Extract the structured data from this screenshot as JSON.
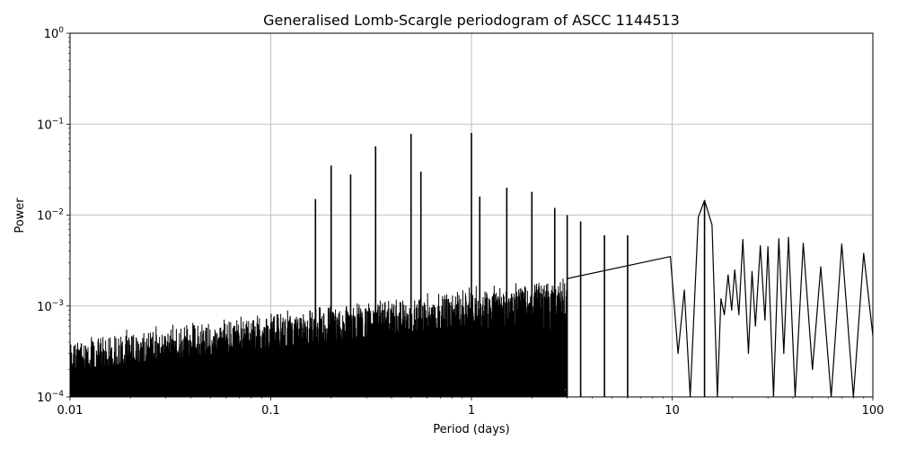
{
  "chart_data": {
    "type": "line",
    "title": "Generalised Lomb-Scargle periodogram of ASCC 1144513",
    "xlabel": "Period (days)",
    "ylabel": "Power",
    "xscale": "log",
    "yscale": "log",
    "xlim": [
      0.01,
      100
    ],
    "ylim": [
      0.0001,
      1
    ],
    "grid": true,
    "line_color": "#000000",
    "x_ticks": [
      {
        "value": 0.01,
        "label": "0.01"
      },
      {
        "value": 0.1,
        "label": "0.1"
      },
      {
        "value": 1,
        "label": "1"
      },
      {
        "value": 10,
        "label": "10"
      },
      {
        "value": 100,
        "label": "100"
      }
    ],
    "y_ticks": [
      {
        "value": 0.0001,
        "mant": "10",
        "exp": "−4"
      },
      {
        "value": 0.001,
        "mant": "10",
        "exp": "−3"
      },
      {
        "value": 0.01,
        "mant": "10",
        "exp": "−2"
      },
      {
        "value": 0.1,
        "mant": "10",
        "exp": "−1"
      },
      {
        "value": 1,
        "mant": "10",
        "exp": "0"
      }
    ],
    "peaks": [
      {
        "x": 0.167,
        "y": 0.015
      },
      {
        "x": 0.2,
        "y": 0.035
      },
      {
        "x": 0.25,
        "y": 0.028
      },
      {
        "x": 0.333,
        "y": 0.057
      },
      {
        "x": 0.5,
        "y": 0.078
      },
      {
        "x": 0.56,
        "y": 0.03
      },
      {
        "x": 1.0,
        "y": 0.08
      },
      {
        "x": 1.1,
        "y": 0.016
      },
      {
        "x": 1.5,
        "y": 0.02
      },
      {
        "x": 2.0,
        "y": 0.018
      },
      {
        "x": 2.6,
        "y": 0.012
      },
      {
        "x": 3.0,
        "y": 0.01
      },
      {
        "x": 3.5,
        "y": 0.0085
      },
      {
        "x": 4.6,
        "y": 0.006
      },
      {
        "x": 6.0,
        "y": 0.006
      },
      {
        "x": 14.5,
        "y": 0.0145
      }
    ],
    "dense_region": {
      "x_start": 0.01,
      "x_end": 3.0
    },
    "lobes": [
      {
        "x": 9.8,
        "y": 0.0035
      },
      {
        "x": 11.5,
        "y": 0.0015
      },
      {
        "x": 13.5,
        "y": 0.0095
      },
      {
        "x": 14.5,
        "y": 0.0145
      },
      {
        "x": 15.8,
        "y": 0.0078
      },
      {
        "x": 17.5,
        "y": 0.0012
      },
      {
        "x": 19.0,
        "y": 0.0022
      },
      {
        "x": 20.5,
        "y": 0.0025
      },
      {
        "x": 22.5,
        "y": 0.0054
      },
      {
        "x": 25.0,
        "y": 0.0024
      },
      {
        "x": 27.5,
        "y": 0.0046
      },
      {
        "x": 30.0,
        "y": 0.0045
      },
      {
        "x": 34.0,
        "y": 0.0055
      },
      {
        "x": 38.0,
        "y": 0.0057
      },
      {
        "x": 45.0,
        "y": 0.0049
      },
      {
        "x": 55.0,
        "y": 0.0027
      },
      {
        "x": 70.0,
        "y": 0.0048
      },
      {
        "x": 90.0,
        "y": 0.0038
      }
    ],
    "nulls": [
      {
        "x": 10.7,
        "y": 0.0003
      },
      {
        "x": 12.3,
        "y": 0.0001
      },
      {
        "x": 16.8,
        "y": 0.0001
      },
      {
        "x": 18.2,
        "y": 0.0008
      },
      {
        "x": 19.8,
        "y": 0.0009
      },
      {
        "x": 21.5,
        "y": 0.0008
      },
      {
        "x": 24.0,
        "y": 0.0003
      },
      {
        "x": 26.0,
        "y": 0.0006
      },
      {
        "x": 29.0,
        "y": 0.0007
      },
      {
        "x": 32.0,
        "y": 0.0001
      },
      {
        "x": 36.0,
        "y": 0.0003
      },
      {
        "x": 41.0,
        "y": 0.0001
      },
      {
        "x": 50.0,
        "y": 0.0002
      },
      {
        "x": 62.0,
        "y": 0.0001
      },
      {
        "x": 80.0,
        "y": 0.0001
      },
      {
        "x": 100.0,
        "y": 0.00047
      }
    ]
  }
}
